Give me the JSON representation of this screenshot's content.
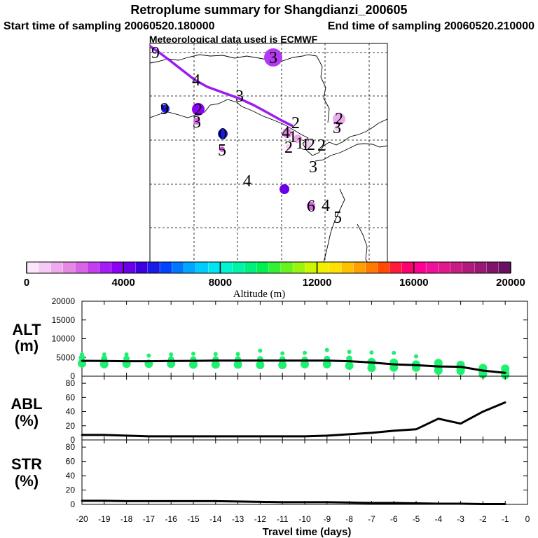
{
  "title": "Retroplume summary for Shangdianzi_200605",
  "start_label": "Start time of sampling 20060520.180000",
  "end_label": "End time of sampling 20060520.210000",
  "met_label": "Meteorological data used is ECMWF",
  "colorbar": {
    "label": "Altitude (m)",
    "min": 0,
    "max": 20000,
    "ticks": [
      "0",
      "4000",
      "8000",
      "12000",
      "16000",
      "20000"
    ],
    "colors": [
      "#fbe6fb",
      "#f5caf5",
      "#eeaaee",
      "#e589e5",
      "#d865e6",
      "#c43ef0",
      "#a51cf5",
      "#8c00f5",
      "#6a00e8",
      "#3c00e0",
      "#1a1ae6",
      "#0044ff",
      "#0077ff",
      "#00a6ff",
      "#00ccff",
      "#00e5f2",
      "#00f5d0",
      "#00f5a8",
      "#00f07e",
      "#00f050",
      "#33f033",
      "#66f31e",
      "#99f50e",
      "#ccf500",
      "#f0f000",
      "#ffe000",
      "#ffc000",
      "#ffa000",
      "#ff7a00",
      "#ff4a00",
      "#ff1a3a",
      "#ff0070",
      "#ff0090",
      "#f0109a",
      "#e01a8c",
      "#c81c82",
      "#b01a7a",
      "#981873",
      "#80146a",
      "#6a1060"
    ]
  },
  "map": {
    "trajectory_color": "#9b1cf0",
    "labels": [
      {
        "text": "9",
        "color": "#000000"
      },
      {
        "text": "4",
        "color": "#000000"
      },
      {
        "text": "3",
        "color": "#000000"
      },
      {
        "text": "2",
        "color": "#000000"
      },
      {
        "text": "3",
        "color": "#000000"
      },
      {
        "text": "9",
        "color": "#000000"
      },
      {
        "text": "2",
        "color": "#000000"
      },
      {
        "text": "3",
        "color": "#000000"
      },
      {
        "text": "0",
        "color": "#000000"
      },
      {
        "text": "5",
        "color": "#000000"
      },
      {
        "text": "4",
        "color": "#000000"
      },
      {
        "text": "1",
        "color": "#000000"
      },
      {
        "text": "2",
        "color": "#000000"
      },
      {
        "text": "1",
        "color": "#000000"
      },
      {
        "text": "1",
        "color": "#000000"
      },
      {
        "text": "2",
        "color": "#000000"
      },
      {
        "text": "2",
        "color": "#000000"
      },
      {
        "text": "2",
        "color": "#000000"
      },
      {
        "text": "3",
        "color": "#000000"
      },
      {
        "text": "4",
        "color": "#000000"
      },
      {
        "text": "3",
        "color": "#000000"
      },
      {
        "text": "6",
        "color": "#000000"
      },
      {
        "text": "4",
        "color": "#000000"
      },
      {
        "text": "5",
        "color": "#000000"
      }
    ]
  },
  "chart_data": [
    {
      "type": "line",
      "panel": "ALT",
      "title": "ALT",
      "ylabel": "(m)",
      "xlabel": "Travel time (days)",
      "x": [
        -20,
        -19,
        -18,
        -17,
        -16,
        -15,
        -14,
        -13,
        -12,
        -11,
        -10,
        -9,
        -8,
        -7,
        -6,
        -5,
        -4,
        -3,
        -2,
        -1
      ],
      "values": [
        4100,
        4050,
        4000,
        4000,
        4050,
        4100,
        4150,
        4150,
        4150,
        4150,
        4150,
        4150,
        4000,
        3650,
        3150,
        2950,
        2600,
        2500,
        1500,
        900
      ],
      "ylim": [
        0,
        20000
      ],
      "yticks": [
        0,
        5000,
        10000,
        15000,
        20000
      ],
      "ytick_labels": [
        "0",
        "5000",
        "10000",
        "15000",
        "20000"
      ],
      "scatter_color": "#1ef070",
      "scatter_points": [
        {
          "x": -20,
          "y": 5800
        },
        {
          "x": -20,
          "y": 4900
        },
        {
          "x": -20,
          "y": 3400
        },
        {
          "x": -19,
          "y": 5800
        },
        {
          "x": -19,
          "y": 4700
        },
        {
          "x": -19,
          "y": 3200
        },
        {
          "x": -18,
          "y": 5800
        },
        {
          "x": -18,
          "y": 4700
        },
        {
          "x": -18,
          "y": 3300
        },
        {
          "x": -17,
          "y": 5500
        },
        {
          "x": -17,
          "y": 3300
        },
        {
          "x": -16,
          "y": 5800
        },
        {
          "x": -16,
          "y": 4500
        },
        {
          "x": -16,
          "y": 3300
        },
        {
          "x": -15,
          "y": 6000
        },
        {
          "x": -15,
          "y": 4500
        },
        {
          "x": -15,
          "y": 3100
        },
        {
          "x": -14,
          "y": 5900
        },
        {
          "x": -14,
          "y": 4500
        },
        {
          "x": -14,
          "y": 3100
        },
        {
          "x": -13,
          "y": 5900
        },
        {
          "x": -13,
          "y": 4500
        },
        {
          "x": -13,
          "y": 3100
        },
        {
          "x": -12,
          "y": 6800
        },
        {
          "x": -12,
          "y": 4500
        },
        {
          "x": -12,
          "y": 3000
        },
        {
          "x": -11,
          "y": 6100
        },
        {
          "x": -11,
          "y": 4500
        },
        {
          "x": -11,
          "y": 3000
        },
        {
          "x": -10,
          "y": 6200
        },
        {
          "x": -10,
          "y": 4400
        },
        {
          "x": -10,
          "y": 3200
        },
        {
          "x": -9,
          "y": 7000
        },
        {
          "x": -9,
          "y": 4600
        },
        {
          "x": -9,
          "y": 3200
        },
        {
          "x": -8,
          "y": 6500
        },
        {
          "x": -8,
          "y": 4700
        },
        {
          "x": -8,
          "y": 2800
        },
        {
          "x": -7,
          "y": 6300
        },
        {
          "x": -7,
          "y": 3800
        },
        {
          "x": -7,
          "y": 2200
        },
        {
          "x": -6,
          "y": 6200
        },
        {
          "x": -6,
          "y": 3600
        },
        {
          "x": -6,
          "y": 2300
        },
        {
          "x": -5,
          "y": 5300
        },
        {
          "x": -5,
          "y": 3100
        },
        {
          "x": -5,
          "y": 2300
        },
        {
          "x": -4,
          "y": 3500
        },
        {
          "x": -4,
          "y": 2500
        },
        {
          "x": -4,
          "y": 1500
        },
        {
          "x": -3,
          "y": 3000
        },
        {
          "x": -3,
          "y": 2000
        },
        {
          "x": -3,
          "y": 1400
        },
        {
          "x": -2,
          "y": 2200
        },
        {
          "x": -2,
          "y": 1200
        },
        {
          "x": -2,
          "y": 500
        },
        {
          "x": -1,
          "y": 2000
        },
        {
          "x": -1,
          "y": 900
        },
        {
          "x": -1,
          "y": 300
        }
      ]
    },
    {
      "type": "line",
      "panel": "ABL",
      "title": "ABL",
      "ylabel": "(%)",
      "xlabel": "Travel time (days)",
      "x": [
        -20,
        -19,
        -18,
        -17,
        -16,
        -15,
        -14,
        -13,
        -12,
        -11,
        -10,
        -9,
        -8,
        -7,
        -6,
        -5,
        -4,
        -3,
        -2,
        -1
      ],
      "values": [
        7,
        7,
        6,
        5,
        5,
        5,
        5,
        5,
        5,
        5,
        5,
        6,
        8,
        10,
        13,
        15,
        30,
        23,
        40,
        53
      ],
      "ylim": [
        0,
        90
      ],
      "yticks": [
        0,
        20,
        40,
        60,
        80
      ],
      "ytick_labels": [
        "0",
        "20",
        "40",
        "60",
        "80"
      ]
    },
    {
      "type": "line",
      "panel": "STR",
      "title": "STR",
      "ylabel": "(%)",
      "xlabel": "Travel time (days)",
      "x": [
        -20,
        -19,
        -18,
        -17,
        -16,
        -15,
        -14,
        -13,
        -12,
        -11,
        -10,
        -9,
        -8,
        -7,
        -6,
        -5,
        -4,
        -3,
        -2,
        -1
      ],
      "values": [
        5,
        5,
        4.5,
        4.5,
        4.5,
        4.5,
        4.5,
        4,
        3.5,
        3,
        3,
        3,
        2.5,
        2,
        2,
        1.5,
        1,
        1,
        0.5,
        0.5
      ],
      "ylim": [
        0,
        90
      ],
      "yticks": [
        0,
        20,
        40,
        60,
        80
      ],
      "ytick_labels": [
        "0",
        "20",
        "40",
        "60",
        "80"
      ]
    }
  ],
  "xaxis": {
    "ticks": [
      -20,
      -19,
      -18,
      -17,
      -16,
      -15,
      -14,
      -13,
      -12,
      -11,
      -10,
      -9,
      -8,
      -7,
      -6,
      -5,
      -4,
      -3,
      -2,
      -1,
      0
    ],
    "tick_labels": [
      "-20",
      "-19",
      "-18",
      "-17",
      "-16",
      "-15",
      "-14",
      "-13",
      "-12",
      "-11",
      "-10",
      "-9",
      "-8",
      "-7",
      "-6",
      "-5",
      "-4",
      "-3",
      "-2",
      "-1",
      "0"
    ],
    "label": "Travel time (days)"
  }
}
